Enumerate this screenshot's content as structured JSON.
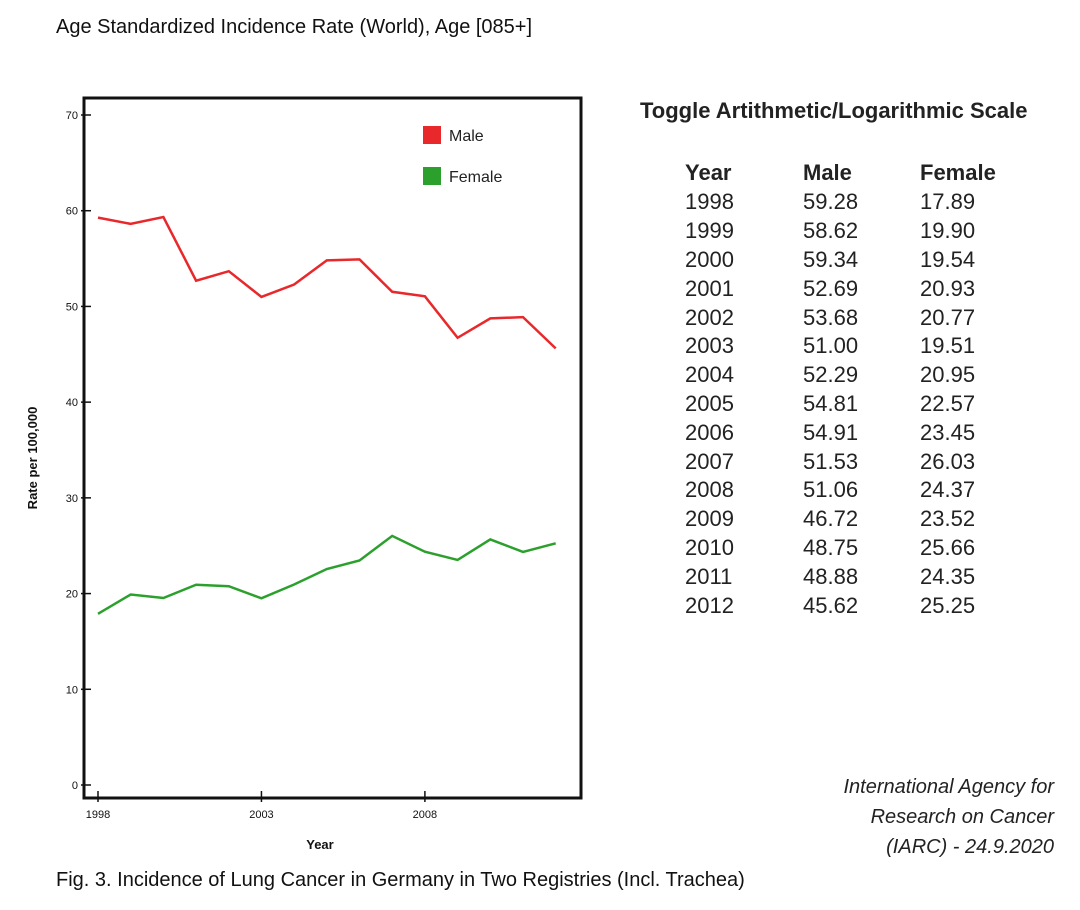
{
  "page": {
    "title": "Age Standardized Incidence Rate (World), Age [085+]",
    "caption": "Fig. 3. Incidence of Lung Cancer in Germany in Two Registries (Incl. Trachea)",
    "source": "International Agency for Research on Cancer (IARC) - 24.9.2020"
  },
  "toggle": {
    "label": "Toggle Artithmetic/Logarithmic Scale"
  },
  "table": {
    "headers": [
      "Year",
      "Male",
      "Female"
    ],
    "rows": [
      [
        "1998",
        "59.28",
        "17.89"
      ],
      [
        "1999",
        "58.62",
        "19.90"
      ],
      [
        "2000",
        "59.34",
        "19.54"
      ],
      [
        "2001",
        "52.69",
        "20.93"
      ],
      [
        "2002",
        "53.68",
        "20.77"
      ],
      [
        "2003",
        "51.00",
        "19.51"
      ],
      [
        "2004",
        "52.29",
        "20.95"
      ],
      [
        "2005",
        "54.81",
        "22.57"
      ],
      [
        "2006",
        "54.91",
        "23.45"
      ],
      [
        "2007",
        "51.53",
        "26.03"
      ],
      [
        "2008",
        "51.06",
        "24.37"
      ],
      [
        "2009",
        "46.72",
        "23.52"
      ],
      [
        "2010",
        "48.75",
        "25.66"
      ],
      [
        "2011",
        "48.88",
        "24.35"
      ],
      [
        "2012",
        "45.62",
        "25.25"
      ]
    ]
  },
  "chart_data": {
    "type": "line",
    "xlabel": "Year",
    "ylabel": "Rate per 100,000",
    "x": [
      1998,
      1999,
      2000,
      2001,
      2002,
      2003,
      2004,
      2005,
      2006,
      2007,
      2008,
      2009,
      2010,
      2011,
      2012
    ],
    "xlim": [
      1998,
      2012.5
    ],
    "ylim": [
      0,
      70
    ],
    "xticks": [
      "1998",
      "2003",
      "2008"
    ],
    "yticks": [
      "0",
      "10",
      "20",
      "30",
      "40",
      "50",
      "60",
      "70"
    ],
    "legend_position": "top-right",
    "grid": false,
    "series": [
      {
        "name": "Male",
        "color": "#e8282b",
        "values": [
          59.28,
          58.62,
          59.34,
          52.69,
          53.68,
          51.0,
          52.29,
          54.81,
          54.91,
          51.53,
          51.06,
          46.72,
          48.75,
          48.88,
          45.62
        ]
      },
      {
        "name": "Female",
        "color": "#2ca02c",
        "values": [
          17.89,
          19.9,
          19.54,
          20.93,
          20.77,
          19.51,
          20.95,
          22.57,
          23.45,
          26.03,
          24.37,
          23.52,
          25.66,
          24.35,
          25.25
        ]
      }
    ]
  }
}
